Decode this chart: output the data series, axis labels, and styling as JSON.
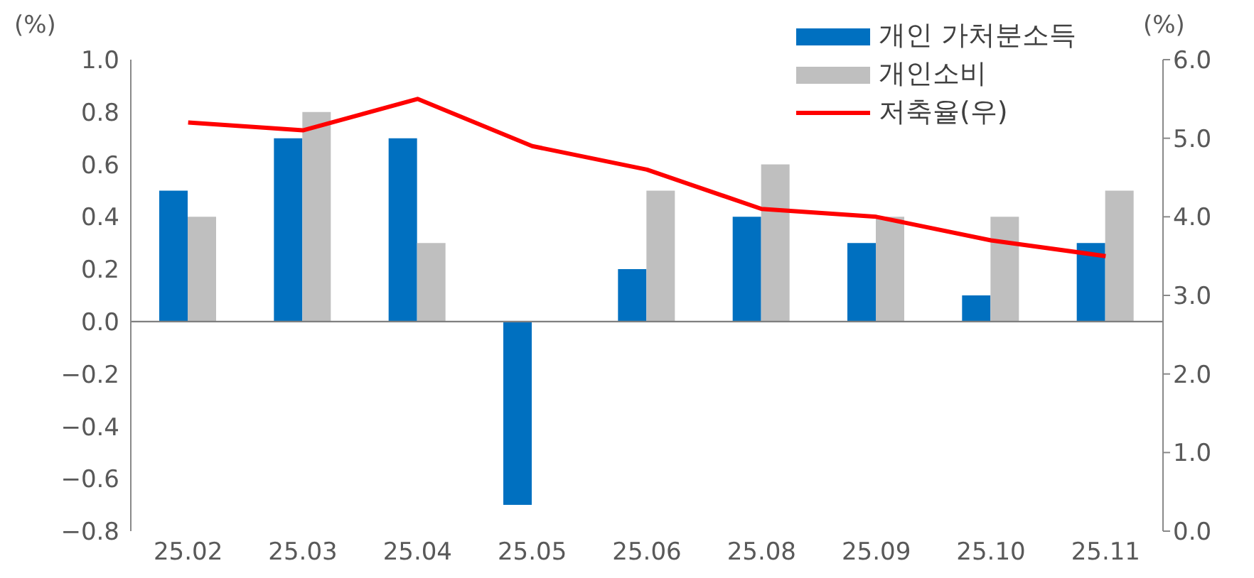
{
  "chart_data": {
    "type": "bar",
    "ylabel": "(%)",
    "y2label": "(%)",
    "categories": [
      "25.02",
      "25.03",
      "25.04",
      "25.05",
      "25.06",
      "25.08",
      "25.09",
      "25.10",
      "25.11"
    ],
    "series": [
      {
        "name": "개인 가처분소득",
        "color": "#0070c0",
        "values": [
          0.5,
          0.7,
          0.7,
          -0.7,
          0.2,
          0.4,
          0.3,
          0.1,
          0.3
        ]
      },
      {
        "name": "개인소비",
        "color": "#bfbfbf",
        "values": [
          0.4,
          0.8,
          0.3,
          0,
          0.5,
          0.6,
          0.4,
          0.4,
          0.5
        ]
      },
      {
        "name": "저축율(우)",
        "type": "line",
        "axis": "y2",
        "color": "#ff0000",
        "values": [
          5.2,
          5.1,
          5.5,
          4.9,
          4.6,
          4.1,
          4.0,
          3.7,
          3.5
        ]
      }
    ],
    "ylim": [
      -0.8,
      1.0
    ],
    "yticks": [
      {
        "value": -0.8,
        "label": "−0.8"
      },
      {
        "value": -0.6,
        "label": "−0.6"
      },
      {
        "value": -0.4,
        "label": "−0.4"
      },
      {
        "value": -0.2,
        "label": "−0.2"
      },
      {
        "value": 0,
        "label": "0.0"
      },
      {
        "value": 0.2,
        "label": "0.2"
      },
      {
        "value": 0.4,
        "label": "0.4"
      },
      {
        "value": 0.6,
        "label": "0.6"
      },
      {
        "value": 0.8,
        "label": "0.8"
      },
      {
        "value": 1,
        "label": "1.0"
      }
    ],
    "y2lim": [
      0,
      6
    ],
    "y2ticks": [
      {
        "value": 0,
        "label": "0.0"
      },
      {
        "value": 1,
        "label": "1.0"
      },
      {
        "value": 2,
        "label": "2.0"
      },
      {
        "value": 3,
        "label": "3.0"
      },
      {
        "value": 4,
        "label": "4.0"
      },
      {
        "value": 5,
        "label": "5.0"
      },
      {
        "value": 6,
        "label": "6.0"
      }
    ],
    "ref_lines": [
      {
        "axis": "y",
        "value": 0,
        "color": "#7f7f7f"
      }
    ],
    "grid": false,
    "legend": "top right",
    "marker": "none"
  }
}
